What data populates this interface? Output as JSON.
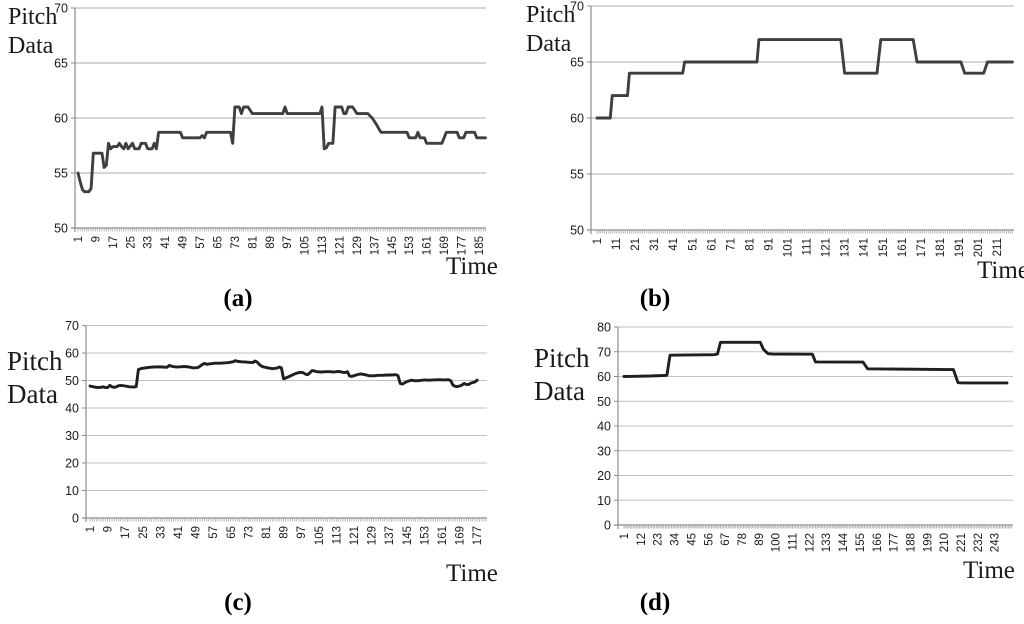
{
  "figure": {
    "background": "#ffffff",
    "tick_comb_color": "#a6a6a6",
    "text_color": "#1a1a1a"
  },
  "chart_data": [
    {
      "id": "a",
      "type": "line",
      "caption": "(a)",
      "x_label": "Time",
      "y_label": "Pitch Data",
      "y_label_lines": [
        "Pitch",
        "Data"
      ],
      "y_ticks": [
        50,
        55,
        60,
        65,
        70
      ],
      "x_ticks": [
        1,
        9,
        17,
        25,
        33,
        41,
        49,
        57,
        65,
        73,
        81,
        89,
        97,
        105,
        113,
        121,
        129,
        137,
        145,
        153,
        161,
        169,
        177,
        185
      ],
      "x_range": [
        1,
        188
      ],
      "y_range": [
        50,
        70
      ],
      "grid_on": true,
      "legend": "none",
      "line_color": "#3f3f3f",
      "grid_color": "#ababab",
      "axis_color": "#8c8c8c",
      "series": [
        [
          1,
          55
        ],
        [
          2,
          54.2
        ],
        [
          3,
          53.5
        ],
        [
          4,
          53.3
        ],
        [
          6,
          53.3
        ],
        [
          7,
          53.6
        ],
        [
          8,
          56.8
        ],
        [
          12,
          56.8
        ],
        [
          13,
          55.5
        ],
        [
          14,
          55.7
        ],
        [
          15,
          57.7
        ],
        [
          16,
          57.2
        ],
        [
          17,
          57.4
        ],
        [
          19,
          57.4
        ],
        [
          20,
          57.7
        ],
        [
          21,
          57.4
        ],
        [
          22,
          57.2
        ],
        [
          23,
          57.7
        ],
        [
          24,
          57.2
        ],
        [
          26,
          57.7
        ],
        [
          27,
          57.2
        ],
        [
          29,
          57.2
        ],
        [
          30,
          57.7
        ],
        [
          32,
          57.7
        ],
        [
          33,
          57.2
        ],
        [
          35,
          57.2
        ],
        [
          36,
          57.7
        ],
        [
          37,
          57.2
        ],
        [
          38,
          58.7
        ],
        [
          48,
          58.7
        ],
        [
          49,
          58.2
        ],
        [
          57,
          58.2
        ],
        [
          58,
          58.4
        ],
        [
          59,
          58.2
        ],
        [
          60,
          58.7
        ],
        [
          71,
          58.7
        ],
        [
          72,
          57.7
        ],
        [
          73,
          61
        ],
        [
          75,
          61
        ],
        [
          76,
          60.4
        ],
        [
          77,
          61
        ],
        [
          79,
          61
        ],
        [
          81,
          60.4
        ],
        [
          95,
          60.4
        ],
        [
          96,
          61
        ],
        [
          97,
          60.4
        ],
        [
          112,
          60.4
        ],
        [
          113,
          61
        ],
        [
          114,
          57.2
        ],
        [
          115,
          57.3
        ],
        [
          116,
          57.7
        ],
        [
          118,
          57.7
        ],
        [
          119,
          61
        ],
        [
          122,
          61
        ],
        [
          123,
          60.4
        ],
        [
          124,
          60.4
        ],
        [
          125,
          61
        ],
        [
          127,
          61
        ],
        [
          129,
          60.4
        ],
        [
          134,
          60.4
        ],
        [
          136,
          60
        ],
        [
          138,
          59.4
        ],
        [
          140,
          58.7
        ],
        [
          152,
          58.7
        ],
        [
          153,
          58.2
        ],
        [
          156,
          58.2
        ],
        [
          157,
          58.7
        ],
        [
          158,
          58.2
        ],
        [
          160,
          58.2
        ],
        [
          161,
          57.7
        ],
        [
          168,
          57.7
        ],
        [
          169,
          58.2
        ],
        [
          170,
          58.7
        ],
        [
          175,
          58.7
        ],
        [
          176,
          58.2
        ],
        [
          178,
          58.2
        ],
        [
          179,
          58.7
        ],
        [
          183,
          58.7
        ],
        [
          184,
          58.2
        ],
        [
          188,
          58.2
        ]
      ]
    },
    {
      "id": "b",
      "type": "line",
      "caption": "(b)",
      "x_label": "Time",
      "y_label": "Pitch Data",
      "y_label_lines": [
        "Pitch",
        "Data"
      ],
      "y_ticks": [
        50,
        55,
        60,
        65,
        70
      ],
      "x_ticks": [
        1,
        11,
        21,
        31,
        41,
        51,
        61,
        71,
        81,
        91,
        101,
        111,
        121,
        131,
        141,
        151,
        161,
        171,
        181,
        191,
        201,
        211
      ],
      "x_range": [
        1,
        219
      ],
      "y_range": [
        50,
        70
      ],
      "grid_on": true,
      "legend": "none",
      "line_color": "#3f3f3f",
      "grid_color": "#ababab",
      "axis_color": "#8c8c8c",
      "series": [
        [
          1,
          60
        ],
        [
          8,
          60
        ],
        [
          9,
          62
        ],
        [
          17,
          62
        ],
        [
          18,
          64
        ],
        [
          46,
          64
        ],
        [
          47,
          65
        ],
        [
          85,
          65
        ],
        [
          86,
          67
        ],
        [
          129,
          67
        ],
        [
          131,
          64
        ],
        [
          148,
          64
        ],
        [
          150,
          67
        ],
        [
          167,
          67
        ],
        [
          169,
          65
        ],
        [
          192,
          65
        ],
        [
          194,
          64
        ],
        [
          204,
          64
        ],
        [
          206,
          65
        ],
        [
          219,
          65
        ]
      ]
    },
    {
      "id": "c",
      "type": "line",
      "caption": "(c)",
      "x_label": "Time",
      "y_label": "Pitch Data",
      "y_label_lines": [
        "Pitch",
        "Data"
      ],
      "y_ticks": [
        0,
        10,
        20,
        30,
        40,
        50,
        60,
        70
      ],
      "x_ticks": [
        1,
        9,
        17,
        25,
        33,
        41,
        49,
        57,
        65,
        73,
        81,
        89,
        97,
        105,
        113,
        121,
        129,
        137,
        145,
        153,
        161,
        169,
        177
      ],
      "x_range": [
        1,
        181
      ],
      "y_range": [
        0,
        70
      ],
      "grid_on": true,
      "legend": "none",
      "line_color": "#1f1f1f",
      "grid_color": "#c2c2c2",
      "axis_color": "#8c8c8c",
      "series": [
        [
          1,
          48
        ],
        [
          2,
          47.8
        ],
        [
          4,
          47.5
        ],
        [
          6,
          47.5
        ],
        [
          7,
          47.7
        ],
        [
          8,
          47.4
        ],
        [
          9,
          47.4
        ],
        [
          10,
          48.2
        ],
        [
          11,
          47.7
        ],
        [
          12,
          47.5
        ],
        [
          13,
          47.7
        ],
        [
          14,
          48.1
        ],
        [
          15,
          48.2
        ],
        [
          17,
          48
        ],
        [
          19,
          47.7
        ],
        [
          21,
          47.6
        ],
        [
          22,
          47.8
        ],
        [
          23,
          54
        ],
        [
          24,
          54.3
        ],
        [
          26,
          54.6
        ],
        [
          28,
          54.8
        ],
        [
          30,
          54.9
        ],
        [
          32,
          55
        ],
        [
          34,
          54.9
        ],
        [
          36,
          54.8
        ],
        [
          37,
          55.5
        ],
        [
          38,
          55.2
        ],
        [
          40,
          54.9
        ],
        [
          42,
          55
        ],
        [
          44,
          55.1
        ],
        [
          46,
          54.9
        ],
        [
          48,
          54.6
        ],
        [
          50,
          54.7
        ],
        [
          51,
          55.2
        ],
        [
          52,
          55.8
        ],
        [
          53,
          56.2
        ],
        [
          54,
          55.9
        ],
        [
          56,
          56.1
        ],
        [
          58,
          56.3
        ],
        [
          60,
          56.3
        ],
        [
          62,
          56.4
        ],
        [
          64,
          56.5
        ],
        [
          66,
          56.8
        ],
        [
          67,
          57.2
        ],
        [
          68,
          57
        ],
        [
          70,
          56.8
        ],
        [
          72,
          56.7
        ],
        [
          74,
          56.6
        ],
        [
          75,
          56.5
        ],
        [
          76,
          57.1
        ],
        [
          77,
          56.7
        ],
        [
          78,
          55.8
        ],
        [
          79,
          55.2
        ],
        [
          80,
          54.9
        ],
        [
          82,
          54.6
        ],
        [
          84,
          54.3
        ],
        [
          86,
          54.5
        ],
        [
          87,
          54.9
        ],
        [
          88,
          54.6
        ],
        [
          89,
          50.6
        ],
        [
          90,
          50.9
        ],
        [
          92,
          51.6
        ],
        [
          94,
          52.4
        ],
        [
          96,
          52.9
        ],
        [
          97,
          53
        ],
        [
          98,
          52.8
        ],
        [
          99,
          52.3
        ],
        [
          100,
          52.1
        ],
        [
          102,
          53.6
        ],
        [
          103,
          53.5
        ],
        [
          104,
          53.2
        ],
        [
          106,
          53.1
        ],
        [
          108,
          53.2
        ],
        [
          110,
          53.2
        ],
        [
          112,
          53.1
        ],
        [
          114,
          53.3
        ],
        [
          116,
          53
        ],
        [
          117,
          52.9
        ],
        [
          118,
          53.2
        ],
        [
          119,
          51.6
        ],
        [
          120,
          51.5
        ],
        [
          122,
          52
        ],
        [
          124,
          52.4
        ],
        [
          126,
          52.1
        ],
        [
          128,
          51.7
        ],
        [
          130,
          51.7
        ],
        [
          132,
          51.9
        ],
        [
          134,
          51.9
        ],
        [
          136,
          52
        ],
        [
          138,
          52
        ],
        [
          140,
          52.1
        ],
        [
          141,
          51.8
        ],
        [
          142,
          48.9
        ],
        [
          143,
          48.7
        ],
        [
          145,
          49.6
        ],
        [
          147,
          50.1
        ],
        [
          149,
          49.9
        ],
        [
          151,
          50
        ],
        [
          153,
          50.2
        ],
        [
          155,
          50.1
        ],
        [
          157,
          50.2
        ],
        [
          160,
          50.3
        ],
        [
          162,
          50.2
        ],
        [
          164,
          50.3
        ],
        [
          165,
          49.9
        ],
        [
          166,
          48.3
        ],
        [
          167,
          47.9
        ],
        [
          168,
          47.8
        ],
        [
          170,
          48.3
        ],
        [
          171,
          48.9
        ],
        [
          172,
          48.6
        ],
        [
          173,
          48.5
        ],
        [
          174,
          49
        ],
        [
          176,
          49.5
        ],
        [
          177,
          50.1
        ]
      ]
    },
    {
      "id": "d",
      "type": "line",
      "caption": "(d)",
      "x_label": "Time",
      "y_label": "Pitch Data",
      "y_label_lines": [
        "Pitch",
        "Data"
      ],
      "y_ticks": [
        0,
        10,
        20,
        30,
        40,
        50,
        60,
        70,
        80
      ],
      "x_ticks": [
        1,
        12,
        23,
        34,
        45,
        56,
        67,
        78,
        89,
        100,
        111,
        122,
        133,
        144,
        155,
        166,
        177,
        188,
        199,
        210,
        221,
        232,
        243
      ],
      "x_range": [
        1,
        251
      ],
      "y_range": [
        0,
        80
      ],
      "grid_on": true,
      "legend": "none",
      "line_color": "#1f1f1f",
      "grid_color": "#c2c2c2",
      "axis_color": "#8c8c8c",
      "series": [
        [
          1,
          60
        ],
        [
          18,
          60.2
        ],
        [
          27,
          60.4
        ],
        [
          29,
          60.5
        ],
        [
          31,
          68.6
        ],
        [
          60,
          68.8
        ],
        [
          62,
          69.1
        ],
        [
          64,
          73.8
        ],
        [
          90,
          73.8
        ],
        [
          92,
          71
        ],
        [
          95,
          69.2
        ],
        [
          98,
          69.1
        ],
        [
          124,
          69
        ],
        [
          126,
          65.9
        ],
        [
          157,
          65.8
        ],
        [
          160,
          63.1
        ],
        [
          213,
          62.8
        ],
        [
          216,
          62.8
        ],
        [
          219,
          57.5
        ],
        [
          222,
          57.4
        ],
        [
          251,
          57.4
        ]
      ]
    }
  ]
}
